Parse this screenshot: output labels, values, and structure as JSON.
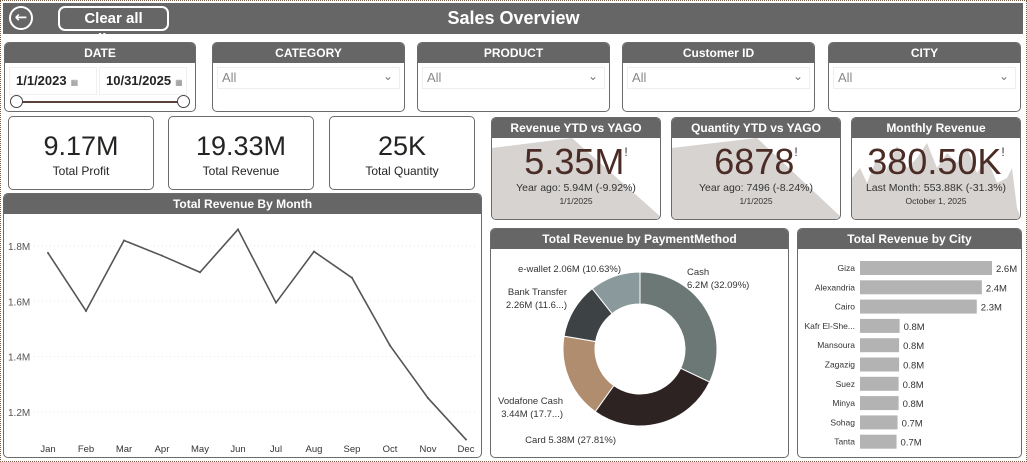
{
  "header": {
    "title": "Sales Overview",
    "clear_label": "Clear all slicers",
    "back_icon": "arrow-left-circle-icon"
  },
  "slicers": {
    "date": {
      "label": "DATE",
      "start": "1/1/2023",
      "end": "10/31/2025",
      "range_fraction": [
        0,
        1
      ]
    },
    "category": {
      "label": "CATEGORY",
      "value": "All"
    },
    "product": {
      "label": "PRODUCT",
      "value": "All"
    },
    "customer": {
      "label": "Customer ID",
      "value": "All"
    },
    "city": {
      "label": "CITY",
      "value": "All"
    }
  },
  "cards": [
    {
      "value": "9.17M",
      "label": "Total Profit"
    },
    {
      "value": "19.33M",
      "label": "Total Revenue"
    },
    {
      "value": "25K",
      "label": "Total Quantity"
    }
  ],
  "kpis": [
    {
      "title": "Revenue YTD vs YAGO",
      "value": "5.35M",
      "flag": "!",
      "sub": "Year ago: 5.94M (-9.92%)",
      "date": "1/1/2025"
    },
    {
      "title": "Quantity YTD vs YAGO",
      "value": "6878",
      "flag": "!",
      "sub": "Year ago: 7496 (-8.24%)",
      "date": "1/1/2025"
    },
    {
      "title": "Monthly Revenue",
      "value": "380.50K",
      "flag": "!",
      "sub": "Last Month: 553.88K (-31.3%)",
      "date": "October 1, 2025"
    }
  ],
  "colors": {
    "header": "#666666",
    "line": "#555555",
    "bar": "#b3b3b3",
    "kpi_value": "#4a2b25"
  },
  "chart_data": [
    {
      "type": "line",
      "title": "Total Revenue By Month",
      "categories": [
        "Jan",
        "Feb",
        "Mar",
        "Apr",
        "May",
        "Jun",
        "Jul",
        "Aug",
        "Sep",
        "Oct",
        "Nov",
        "Dec"
      ],
      "values": [
        1.775,
        1.565,
        1.82,
        1.765,
        1.705,
        1.86,
        1.595,
        1.78,
        1.685,
        1.44,
        1.25,
        1.1
      ],
      "yticks": [
        "1.2M",
        "1.4M",
        "1.6M",
        "1.8M"
      ],
      "ytick_values": [
        1.2,
        1.4,
        1.6,
        1.8
      ],
      "ylim": [
        1.1,
        1.92
      ],
      "unit": "M",
      "grid": true
    },
    {
      "type": "pie",
      "title": "Total Revenue by PaymentMethod",
      "slices": [
        {
          "name": "Cash",
          "value": 6.2,
          "percent": 32.09,
          "label1": "Cash",
          "label2": "6.2M (32.09%)",
          "color": "#6b7876"
        },
        {
          "name": "Card",
          "value": 5.38,
          "percent": 27.81,
          "label1": "Card 5.38M (27.81%)",
          "label2": "",
          "color": "#2e2323"
        },
        {
          "name": "Vodafone Cash",
          "value": 3.44,
          "percent": 17.78,
          "label1": "Vodafone Cash",
          "label2": "3.44M (17.7...)",
          "color": "#b08d6e"
        },
        {
          "name": "Bank Transfer",
          "value": 2.26,
          "percent": 11.69,
          "label1": "Bank Transfer",
          "label2": "2.26M (11.6...)",
          "color": "#3d4244"
        },
        {
          "name": "e-wallet",
          "value": 2.06,
          "percent": 10.63,
          "label1": "e-wallet 2.06M (10.63%)",
          "label2": "",
          "color": "#8a9a9c"
        }
      ]
    },
    {
      "type": "bar",
      "orientation": "horizontal",
      "title": "Total Revenue by City",
      "categories": [
        "Giza",
        "Alexandria",
        "Cairo",
        "Kafr El-She...",
        "Mansoura",
        "Zagazig",
        "Suez",
        "Minya",
        "Sohag",
        "Tanta"
      ],
      "values": [
        2.6,
        2.4,
        2.3,
        0.78,
        0.77,
        0.77,
        0.76,
        0.76,
        0.74,
        0.72
      ],
      "labels": [
        "2.6M",
        "2.4M",
        "2.3M",
        "0.8M",
        "0.8M",
        "0.8M",
        "0.8M",
        "0.8M",
        "0.7M",
        "0.7M"
      ],
      "xlim": [
        0,
        2.6
      ]
    }
  ]
}
